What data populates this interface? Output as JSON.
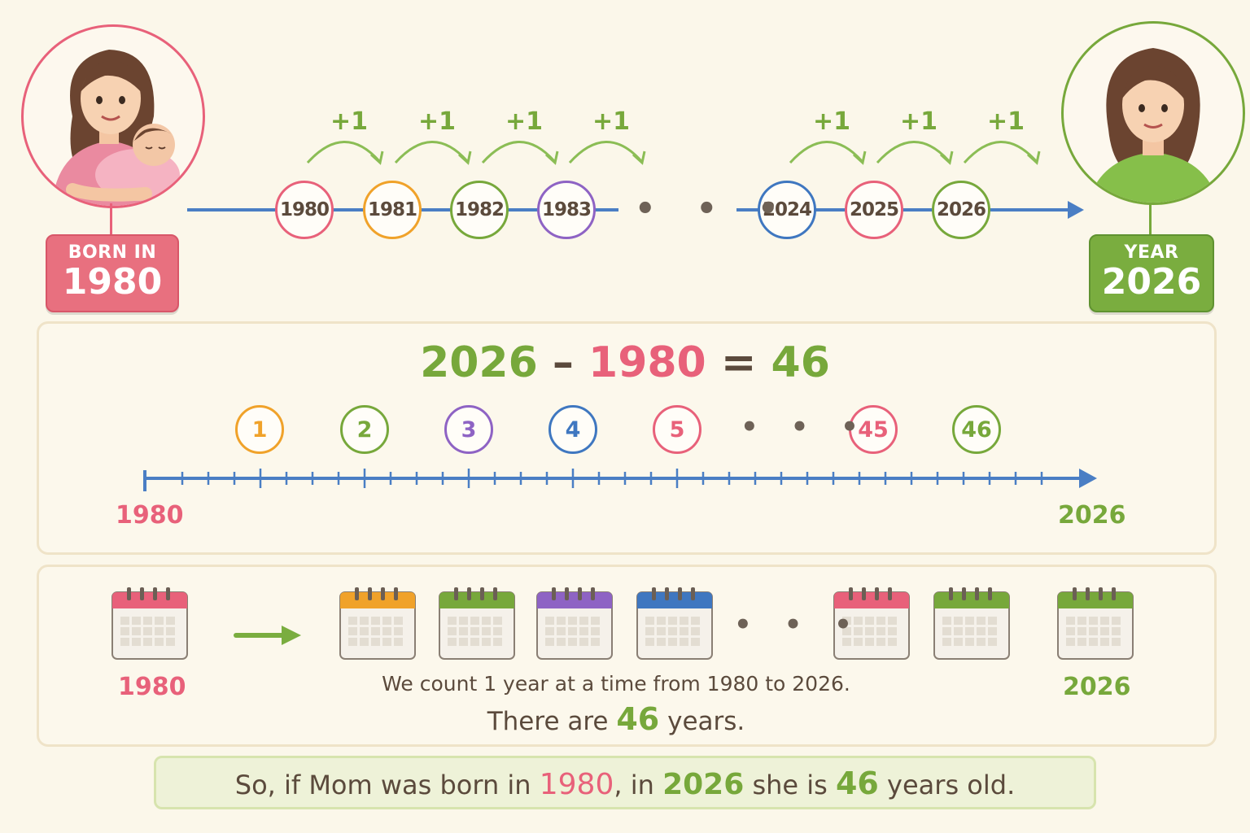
{
  "colors": {
    "red": "#e8617a",
    "green": "#77a83b",
    "orange": "#f0a22a",
    "purple": "#8e63c4",
    "blue": "#3f77c0",
    "brown": "#5b4a3c",
    "timeline": "#4a7ec4"
  },
  "top": {
    "born_badge": {
      "small": "BORN IN",
      "big": "1980"
    },
    "year_badge": {
      "small": "YEAR",
      "big": "2026"
    },
    "plus_label": "+1",
    "years": [
      {
        "label": "1980",
        "color": "red"
      },
      {
        "label": "1981",
        "color": "orange"
      },
      {
        "label": "1982",
        "color": "green"
      },
      {
        "label": "1983",
        "color": "purple"
      },
      {
        "label": "2024",
        "color": "blue"
      },
      {
        "label": "2025",
        "color": "red"
      },
      {
        "label": "2026",
        "color": "green"
      }
    ],
    "ellipsis": "• • •"
  },
  "equation": {
    "left": "2026",
    "minus": "–",
    "right": "1980",
    "equals": "=",
    "result": "46"
  },
  "count_line": {
    "counts": [
      {
        "label": "1",
        "color": "orange"
      },
      {
        "label": "2",
        "color": "green"
      },
      {
        "label": "3",
        "color": "purple"
      },
      {
        "label": "4",
        "color": "blue"
      },
      {
        "label": "5",
        "color": "red"
      },
      {
        "label": "45",
        "color": "red"
      },
      {
        "label": "46",
        "color": "green"
      }
    ],
    "ellipsis": "• • •",
    "start": "1980",
    "end": "2026"
  },
  "calendars": {
    "colors": [
      "red",
      "orange",
      "green",
      "purple",
      "blue",
      "red",
      "green",
      "green"
    ],
    "ellipsis": "• • •",
    "start_label": "1980",
    "end_label": "2026",
    "line1": "We count 1 year at a time from 1980 to 2026.",
    "line2_pre": "There are",
    "line2_num": "46",
    "line2_post": "years."
  },
  "conclusion": {
    "p1": "So, if Mom was born in",
    "y1": "1980",
    "p2": ", in",
    "y2": "2026",
    "p3": "she is",
    "age": "46",
    "p4": "years old."
  }
}
